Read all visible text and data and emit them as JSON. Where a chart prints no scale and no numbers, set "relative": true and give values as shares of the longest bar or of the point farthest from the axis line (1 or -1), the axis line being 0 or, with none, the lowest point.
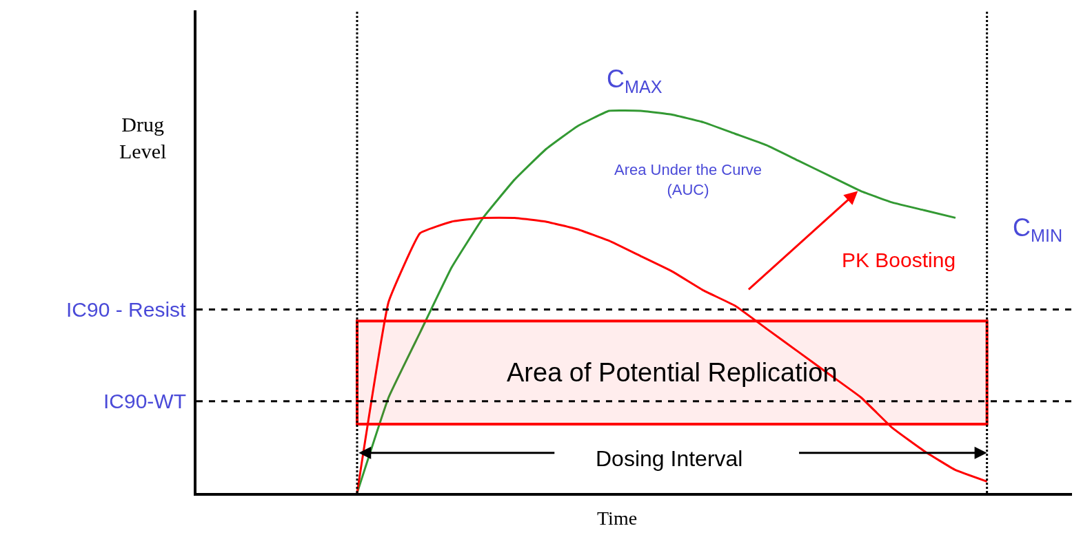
{
  "chart_data": {
    "type": "line",
    "relative": true,
    "xlabel": "Time",
    "categories": [
      null,
      null,
      null,
      null,
      null,
      null,
      null,
      null,
      null,
      null,
      null,
      null,
      null,
      null,
      null,
      null,
      null,
      null,
      null,
      null,
      null
    ],
    "series": [
      {
        "color": "#339933",
        "values": [
          0,
          0.25,
          0.42,
          0.59,
          0.72,
          0.82,
          0.9,
          0.96,
          1.0,
          1.0,
          0.99,
          0.97,
          0.94,
          0.91,
          0.87,
          0.83,
          0.79,
          0.76,
          0.74,
          0.72,
          null
        ]
      },
      {
        "color": "#ff0000",
        "values": [
          0,
          0.5,
          0.68,
          0.71,
          0.72,
          0.72,
          0.71,
          0.69,
          0.66,
          0.62,
          0.58,
          0.53,
          0.49,
          0.43,
          0.37,
          0.31,
          0.25,
          0.17,
          0.11,
          0.06,
          0.03
        ]
      }
    ],
    "ref_lines": [
      {
        "axis": "y",
        "value": 0.48,
        "label": "IC90 - Resist",
        "color": "#000000",
        "line_style": "dashed"
      },
      {
        "axis": "y",
        "value": 0.24,
        "label": "IC90-WT",
        "color": "#000000",
        "line_style": "dashed"
      }
    ],
    "bands": [
      {
        "axis": "y",
        "from": 0.18,
        "to": 0.45,
        "label": "Area of Potential Replication",
        "color": "#ff0000"
      }
    ],
    "annotations": [
      "C$_{MAX}$",
      "Area Under the Curve\n(AUC)",
      "C$_{MIN}$",
      "PK Boosting",
      "Dosing Interval",
      "Drug\nLevel"
    ],
    "marker": "none",
    "line_style": "solid",
    "tick_labels": false
  }
}
